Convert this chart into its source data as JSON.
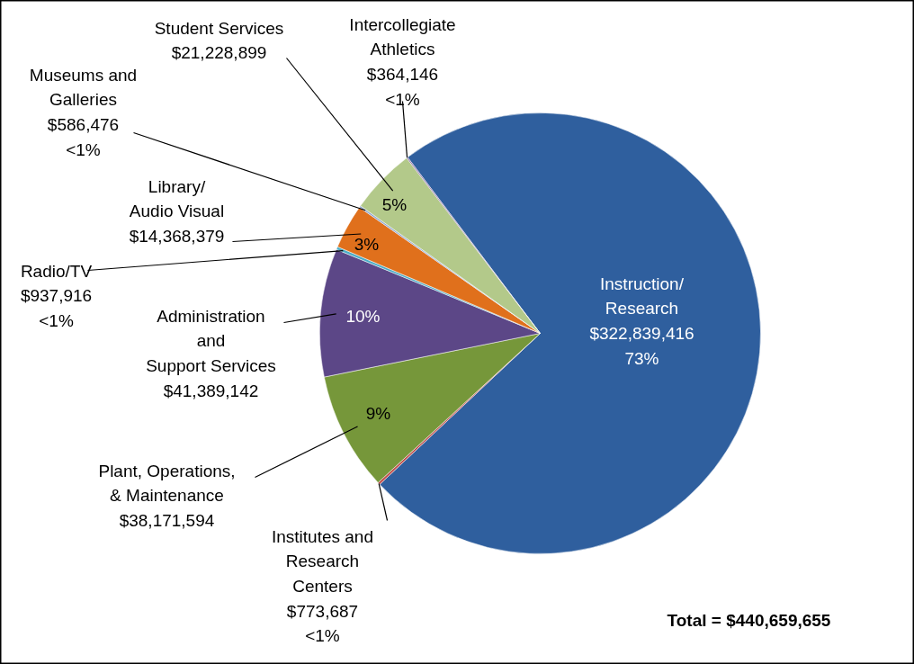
{
  "chart_data": {
    "type": "pie",
    "categories": [
      "Instruction/\nResearch",
      "Institutes and\nResearch\nCenters",
      "Plant, Operations,\n& Maintenance",
      "Administration\nand\nSupport Services",
      "Radio/TV",
      "Library/\nAudio Visual",
      "Museums and\nGalleries",
      "Student Services",
      "Intercollegiate\nAthletics"
    ],
    "values": [
      322839416,
      773687,
      38171594,
      41389142,
      937916,
      14368379,
      586476,
      21228899,
      364146
    ],
    "value_labels": [
      "$322,839,416\n73%",
      "$773,687\n<1%",
      "$38,171,594",
      "$41,389,142",
      "$937,916\n<1%",
      "$14,368,379",
      "$586,476\n<1%",
      "$21,228,899",
      "$364,146\n<1%"
    ],
    "colors": [
      "#2f5f9e",
      "#c0504d",
      "#76973a",
      "#5c4787",
      "#4bacc6",
      "#e0701c",
      "#8ea6d0",
      "#b3c98a",
      "#8064a2"
    ],
    "annotations": [
      "9%",
      "10%",
      "3%",
      "5%",
      "Total = $440,659,655"
    ]
  }
}
